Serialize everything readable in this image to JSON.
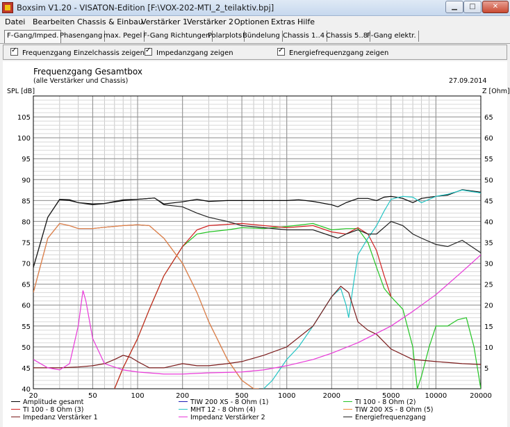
{
  "window": {
    "title": "Boxsim V1.20 - VISATON-Edition [F:\\VOX-202-MTI_2_teilaktiv.bpj]",
    "minimize": "▁",
    "maximize": "□",
    "close": "✕"
  },
  "menu": [
    "Datei",
    "Bearbeiten",
    "Chassis & Einbau",
    "Verstärker 1",
    "Verstärker 2",
    "Optionen",
    "Extras",
    "Hilfe"
  ],
  "tabs": [
    "F-Gang/Imped.",
    "Phasengang",
    "max. Pegel",
    "F-Gang Richtungen",
    "Polarplots",
    "Bündelung",
    "Chassis 1..4",
    "Chassis 5..8",
    "F-Gang elektr."
  ],
  "options": [
    {
      "label": "Frequenzgang Einzelchassis zeigen",
      "checked": true
    },
    {
      "label": "Impedanzgang zeigen",
      "checked": true
    },
    {
      "label": "Energiefrequenzgang zeigen",
      "checked": true
    }
  ],
  "plot": {
    "title": "Frequenzgang Gesamtbox",
    "subtitle": "(alle Verstärker und Chassis)",
    "date": "27.09.2014",
    "ylabel_left": "SPL [dB]",
    "ylabel_right": "Z [Ohm]"
  },
  "chart_data": {
    "type": "line",
    "x_scale": "log",
    "xlim": [
      20,
      20000
    ],
    "ylim_left": [
      40,
      110
    ],
    "ylim_right": [
      0,
      70
    ],
    "x_ticks": [
      20,
      50,
      100,
      200,
      500,
      1000,
      2000,
      5000,
      10000,
      20000
    ],
    "y_ticks_left": [
      40,
      45,
      50,
      55,
      60,
      65,
      70,
      75,
      80,
      85,
      90,
      95,
      100,
      105
    ],
    "y_ticks_right": [
      5,
      10,
      15,
      20,
      25,
      30,
      35,
      40,
      45,
      50,
      55,
      60,
      65
    ],
    "grid": true,
    "legend_position": "bottom",
    "series": [
      {
        "name": "Amplitude gesamt",
        "color": "#000000",
        "axis": "left",
        "x": [
          20,
          25,
          30,
          35,
          40,
          50,
          60,
          80,
          100,
          130,
          150,
          200,
          250,
          300,
          400,
          500,
          700,
          900,
          1000,
          1200,
          1500,
          2000,
          2200,
          2500,
          3000,
          3500,
          4000,
          4500,
          5000,
          6000,
          7000,
          8000,
          10000,
          12000,
          15000,
          20000
        ],
        "y": [
          69,
          81,
          85.3,
          85.2,
          84.5,
          84.2,
          84.3,
          85,
          85.3,
          85.6,
          84.2,
          84.7,
          85.3,
          84.8,
          85,
          85,
          85,
          85,
          85,
          85.2,
          84.8,
          84,
          83.5,
          84.5,
          85.5,
          85.5,
          85,
          85.8,
          86,
          85.5,
          84.5,
          85.5,
          86,
          86.3,
          87.6,
          87
        ]
      },
      {
        "name": "TIW 200 XS - 8 Ohm (1)",
        "color": "#1c1cb4",
        "axis": "left",
        "x": [
          20,
          25,
          30,
          35,
          40,
          50,
          60,
          80,
          100,
          120,
          150,
          200,
          250,
          300,
          400,
          500,
          600,
          650
        ],
        "y": [
          63,
          76,
          79.5,
          79,
          78.3,
          78.3,
          78.6,
          79,
          79.2,
          79,
          76,
          70,
          63,
          56,
          47,
          42,
          40,
          40
        ]
      },
      {
        "name": "TI 100 - 8 Ohm (2)",
        "color": "#22c422",
        "axis": "left",
        "x": [
          70,
          80,
          100,
          120,
          150,
          200,
          250,
          300,
          400,
          500,
          700,
          1000,
          1500,
          2000,
          2500,
          3000,
          3500,
          4000,
          4500,
          5000,
          6000,
          7000,
          7500,
          8000,
          9000,
          10000,
          12000,
          14000,
          16000,
          18000,
          20000
        ],
        "y": [
          40,
          45,
          52,
          59,
          67,
          74,
          77,
          77.5,
          78,
          78.5,
          78.3,
          78.8,
          79.5,
          78,
          78.3,
          78.3,
          75,
          69,
          64,
          62,
          59,
          50,
          40,
          43,
          50,
          55,
          55,
          56.5,
          57,
          50,
          40
        ]
      },
      {
        "name": "TI 100 - 8 Ohm (3)",
        "color": "#d02020",
        "axis": "left",
        "x": [
          70,
          80,
          100,
          120,
          150,
          200,
          250,
          300,
          400,
          500,
          700,
          1000,
          1500,
          2000,
          2500,
          3000,
          3500,
          4000,
          4500,
          5000
        ],
        "y": [
          40,
          45,
          52,
          59,
          67,
          74,
          78,
          79,
          79.3,
          79.5,
          79,
          78.5,
          79,
          77.5,
          77,
          78.5,
          77,
          73,
          67,
          62
        ]
      },
      {
        "name": "MHT 12 - 8 Ohm (4)",
        "color": "#22c4c4",
        "axis": "left",
        "x": [
          700,
          800,
          1000,
          1200,
          1500,
          2000,
          2300,
          2500,
          2600,
          2800,
          3000,
          3500,
          4000,
          4500,
          5000,
          6000,
          7000,
          8000,
          10000,
          12000,
          15000,
          20000
        ],
        "y": [
          40,
          42,
          47,
          50,
          55,
          62,
          64,
          60,
          57,
          65,
          72,
          76,
          79,
          82.5,
          85.3,
          86,
          85.8,
          84.5,
          86,
          86.5,
          87.5,
          86.8
        ]
      },
      {
        "name": "TIW 200 XS - 8 Ohm (5)",
        "color": "#f08a3c",
        "axis": "left",
        "x": [
          20,
          25,
          30,
          35,
          40,
          50,
          60,
          80,
          100,
          120,
          150,
          200,
          250,
          300,
          400,
          500,
          600,
          650
        ],
        "y": [
          63,
          76,
          79.5,
          79,
          78.3,
          78.3,
          78.6,
          79,
          79.2,
          79,
          76,
          70,
          63,
          56,
          47,
          42,
          40,
          40
        ]
      },
      {
        "name": "Impedanz Verstärker 1",
        "color": "#7a1a1a",
        "axis": "right",
        "x": [
          20,
          30,
          40,
          50,
          60,
          70,
          80,
          90,
          100,
          120,
          150,
          200,
          250,
          300,
          400,
          500,
          700,
          1000,
          1500,
          2000,
          2300,
          2600,
          3000,
          3500,
          4000,
          5000,
          7000,
          10000,
          15000,
          20000
        ],
        "y": [
          5,
          5,
          5.2,
          5.5,
          6,
          7,
          8,
          7.5,
          6.5,
          5,
          5,
          6,
          5.5,
          5.5,
          6,
          6.5,
          8,
          10,
          15,
          22,
          24.5,
          23,
          16,
          14,
          13,
          9.5,
          7,
          6.5,
          6,
          5.8
        ]
      },
      {
        "name": "Impedanz Verstärker 2",
        "color": "#e838d8",
        "axis": "right",
        "x": [
          20,
          25,
          30,
          35,
          40,
          43,
          45,
          50,
          60,
          80,
          100,
          150,
          200,
          300,
          500,
          700,
          1000,
          1500,
          2000,
          3000,
          5000,
          7000,
          10000,
          15000,
          20000
        ],
        "y": [
          7,
          5,
          4.5,
          6,
          15,
          23.5,
          21,
          12,
          6,
          4.5,
          4,
          3.5,
          3.5,
          3.8,
          4,
          4.5,
          5.5,
          7,
          8.5,
          11,
          15,
          18.5,
          22.5,
          28,
          32
        ]
      },
      {
        "name": "Energiefrequenzgang",
        "color": "#202020",
        "axis": "left",
        "x": [
          20,
          25,
          30,
          35,
          40,
          50,
          60,
          80,
          100,
          130,
          150,
          200,
          250,
          300,
          400,
          500,
          700,
          1000,
          1500,
          2000,
          2200,
          2500,
          3000,
          3500,
          4000,
          5000,
          6000,
          7000,
          8000,
          10000,
          12000,
          15000,
          20000
        ],
        "y": [
          69,
          81,
          85.2,
          85,
          84.5,
          84,
          84.3,
          85.2,
          85.3,
          85.6,
          84,
          83.5,
          82,
          81,
          80,
          79,
          78.5,
          78,
          78,
          76.5,
          76,
          77,
          78,
          77,
          77,
          80,
          79,
          77,
          76,
          74.5,
          74,
          75.5,
          72.5
        ]
      }
    ]
  }
}
